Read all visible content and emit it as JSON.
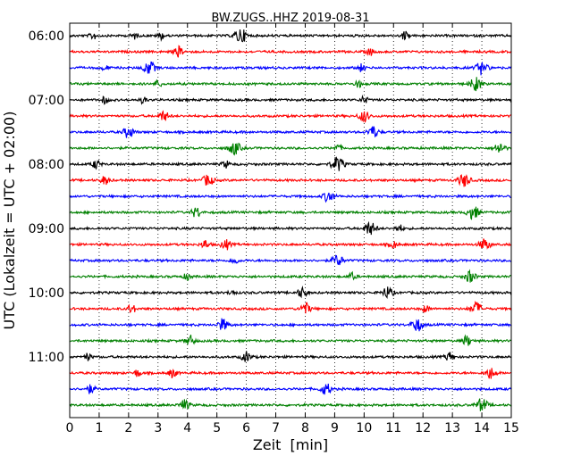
{
  "chart_data": {
    "type": "line",
    "title": "BW.ZUGS..HHZ 2019-08-31",
    "xlabel": "Zeit  [min]",
    "ylabel": "UTC (Lokalzeit = UTC + 02:00)",
    "xlim": [
      0,
      15
    ],
    "xticks": [
      "0",
      "1",
      "2",
      "3",
      "4",
      "5",
      "6",
      "7",
      "8",
      "9",
      "10",
      "11",
      "12",
      "13",
      "14",
      "15"
    ],
    "yticks": [
      "06:00",
      "07:00",
      "08:00",
      "09:00",
      "10:00",
      "11:00"
    ],
    "rows_per_hour": 4,
    "row_minutes": 15,
    "row_colors": [
      "#000000",
      "#ff0000",
      "#0000ff",
      "#008000"
    ],
    "grid": "vertical dotted at each minute",
    "series": [
      {
        "start": "06:00",
        "events": [
          [
            0.8,
            0.5
          ],
          [
            2.2,
            0.45
          ],
          [
            3.1,
            0.5
          ],
          [
            5.8,
            1.0
          ],
          [
            11.4,
            0.6
          ]
        ]
      },
      {
        "start": "06:15",
        "events": [
          [
            3.7,
            0.7
          ],
          [
            10.2,
            0.5
          ]
        ]
      },
      {
        "start": "06:30",
        "events": [
          [
            1.2,
            0.4
          ],
          [
            2.7,
            0.9
          ],
          [
            9.9,
            0.5
          ],
          [
            14.0,
            0.9
          ]
        ]
      },
      {
        "start": "06:45",
        "events": [
          [
            3.0,
            0.5
          ],
          [
            9.8,
            0.5
          ],
          [
            13.8,
            0.9
          ]
        ]
      },
      {
        "start": "07:00",
        "events": [
          [
            1.2,
            0.5
          ],
          [
            2.5,
            0.45
          ],
          [
            10.0,
            0.5
          ]
        ]
      },
      {
        "start": "07:15",
        "events": [
          [
            3.2,
            0.7
          ],
          [
            10.0,
            0.8
          ]
        ]
      },
      {
        "start": "07:30",
        "events": [
          [
            2.0,
            0.8
          ],
          [
            10.3,
            0.8
          ]
        ]
      },
      {
        "start": "07:45",
        "events": [
          [
            5.6,
            0.9
          ],
          [
            9.1,
            0.5
          ],
          [
            14.6,
            0.8
          ]
        ]
      },
      {
        "start": "08:00",
        "events": [
          [
            0.9,
            0.6
          ],
          [
            5.3,
            0.5
          ],
          [
            9.1,
            1.0
          ]
        ]
      },
      {
        "start": "08:15",
        "events": [
          [
            1.2,
            0.6
          ],
          [
            4.7,
            0.8
          ],
          [
            13.4,
            0.9
          ]
        ]
      },
      {
        "start": "08:30",
        "events": [
          [
            8.8,
            0.8
          ]
        ]
      },
      {
        "start": "08:45",
        "events": [
          [
            4.3,
            0.7
          ],
          [
            13.7,
            0.9
          ]
        ]
      },
      {
        "start": "09:00",
        "events": [
          [
            10.2,
            0.9
          ],
          [
            11.2,
            0.5
          ]
        ]
      },
      {
        "start": "09:15",
        "events": [
          [
            4.6,
            0.6
          ],
          [
            5.3,
            0.7
          ],
          [
            11.0,
            0.5
          ],
          [
            14.1,
            0.8
          ]
        ]
      },
      {
        "start": "09:30",
        "events": [
          [
            5.6,
            0.5
          ],
          [
            9.1,
            0.8
          ]
        ]
      },
      {
        "start": "09:45",
        "events": [
          [
            4.0,
            0.5
          ],
          [
            9.6,
            0.5
          ],
          [
            13.6,
            0.8
          ]
        ]
      },
      {
        "start": "10:00",
        "events": [
          [
            5.5,
            0.4
          ],
          [
            7.9,
            0.7
          ],
          [
            10.8,
            0.8
          ]
        ]
      },
      {
        "start": "10:15",
        "events": [
          [
            2.1,
            0.6
          ],
          [
            8.0,
            0.8
          ],
          [
            12.1,
            0.5
          ],
          [
            13.8,
            0.9
          ]
        ]
      },
      {
        "start": "10:30",
        "events": [
          [
            5.2,
            0.8
          ],
          [
            11.8,
            0.9
          ]
        ]
      },
      {
        "start": "10:45",
        "events": [
          [
            4.1,
            0.7
          ],
          [
            13.5,
            0.7
          ]
        ]
      },
      {
        "start": "11:00",
        "events": [
          [
            0.6,
            0.5
          ],
          [
            6.0,
            0.7
          ],
          [
            12.9,
            0.6
          ]
        ]
      },
      {
        "start": "11:15",
        "events": [
          [
            2.3,
            0.5
          ],
          [
            3.5,
            0.6
          ],
          [
            14.3,
            0.8
          ]
        ]
      },
      {
        "start": "11:30",
        "events": [
          [
            0.7,
            0.6
          ],
          [
            8.7,
            0.8
          ]
        ]
      },
      {
        "start": "11:45",
        "events": [
          [
            3.9,
            0.7
          ],
          [
            14.0,
            0.9
          ]
        ]
      }
    ]
  }
}
